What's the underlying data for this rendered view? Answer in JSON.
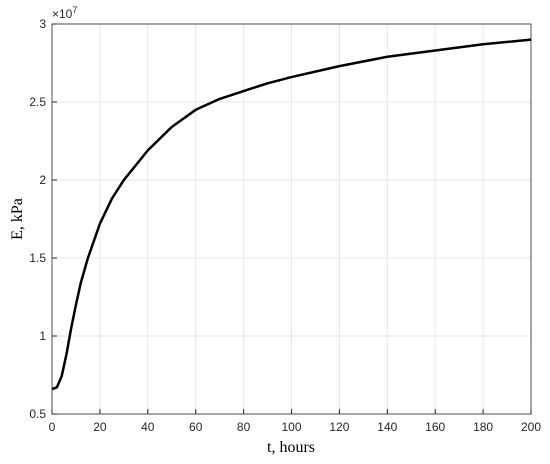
{
  "chart_data": {
    "type": "line",
    "x_label": "t, hours",
    "y_label": "E, kPa",
    "y_exponent": {
      "base": "×10",
      "power": "7"
    },
    "x": [
      0,
      2,
      4,
      6,
      8,
      10,
      12,
      15,
      20,
      25,
      30,
      40,
      50,
      60,
      70,
      80,
      90,
      100,
      120,
      140,
      160,
      180,
      200
    ],
    "series": [
      {
        "name": "E",
        "color": "#000000",
        "values": [
          0.66,
          0.67,
          0.74,
          0.88,
          1.05,
          1.2,
          1.34,
          1.5,
          1.72,
          1.88,
          2.0,
          2.19,
          2.34,
          2.45,
          2.52,
          2.57,
          2.62,
          2.66,
          2.73,
          2.79,
          2.83,
          2.87,
          2.9
        ]
      }
    ],
    "xlim": [
      0,
      200
    ],
    "xticks": [
      0,
      20,
      40,
      60,
      80,
      100,
      120,
      140,
      160,
      180,
      200
    ],
    "ylim": [
      0.5,
      3
    ],
    "yticks": [
      0.5,
      1,
      1.5,
      2,
      2.5,
      3
    ],
    "grid": true
  }
}
